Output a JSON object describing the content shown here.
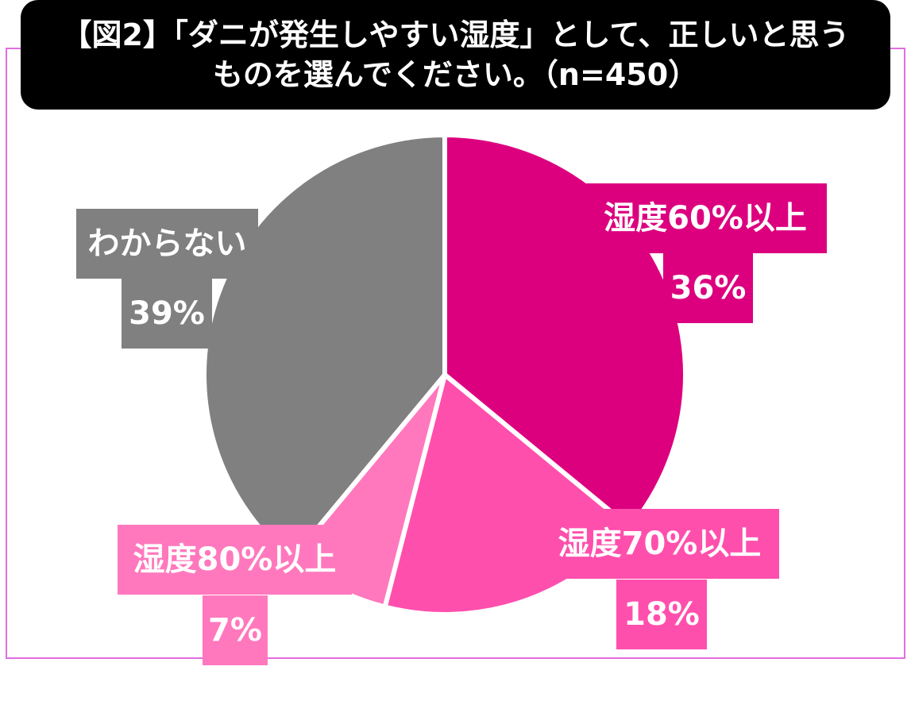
{
  "title": {
    "line1": "【図2】「ダニが発生しやすい湿度」として、正しいと思う",
    "line2": "ものを選んでください。（n=450）"
  },
  "chart_data": {
    "type": "pie",
    "title": "【図2】「ダニが発生しやすい湿度」として、正しいと思うものを選んでください。（n=450）",
    "n": 450,
    "slices": [
      {
        "label": "湿度60%以上",
        "value": 36,
        "value_label": "36%",
        "color": "#dc007f"
      },
      {
        "label": "湿度70%以上",
        "value": 18,
        "value_label": "18%",
        "color": "#ff4fad"
      },
      {
        "label": "湿度80%以上",
        "value": 7,
        "value_label": "7%",
        "color": "#ff78bd"
      },
      {
        "label": "わからない",
        "value": 39,
        "value_label": "39%",
        "color": "#808080"
      }
    ],
    "start": "12 o'clock",
    "direction": "clockwise"
  }
}
